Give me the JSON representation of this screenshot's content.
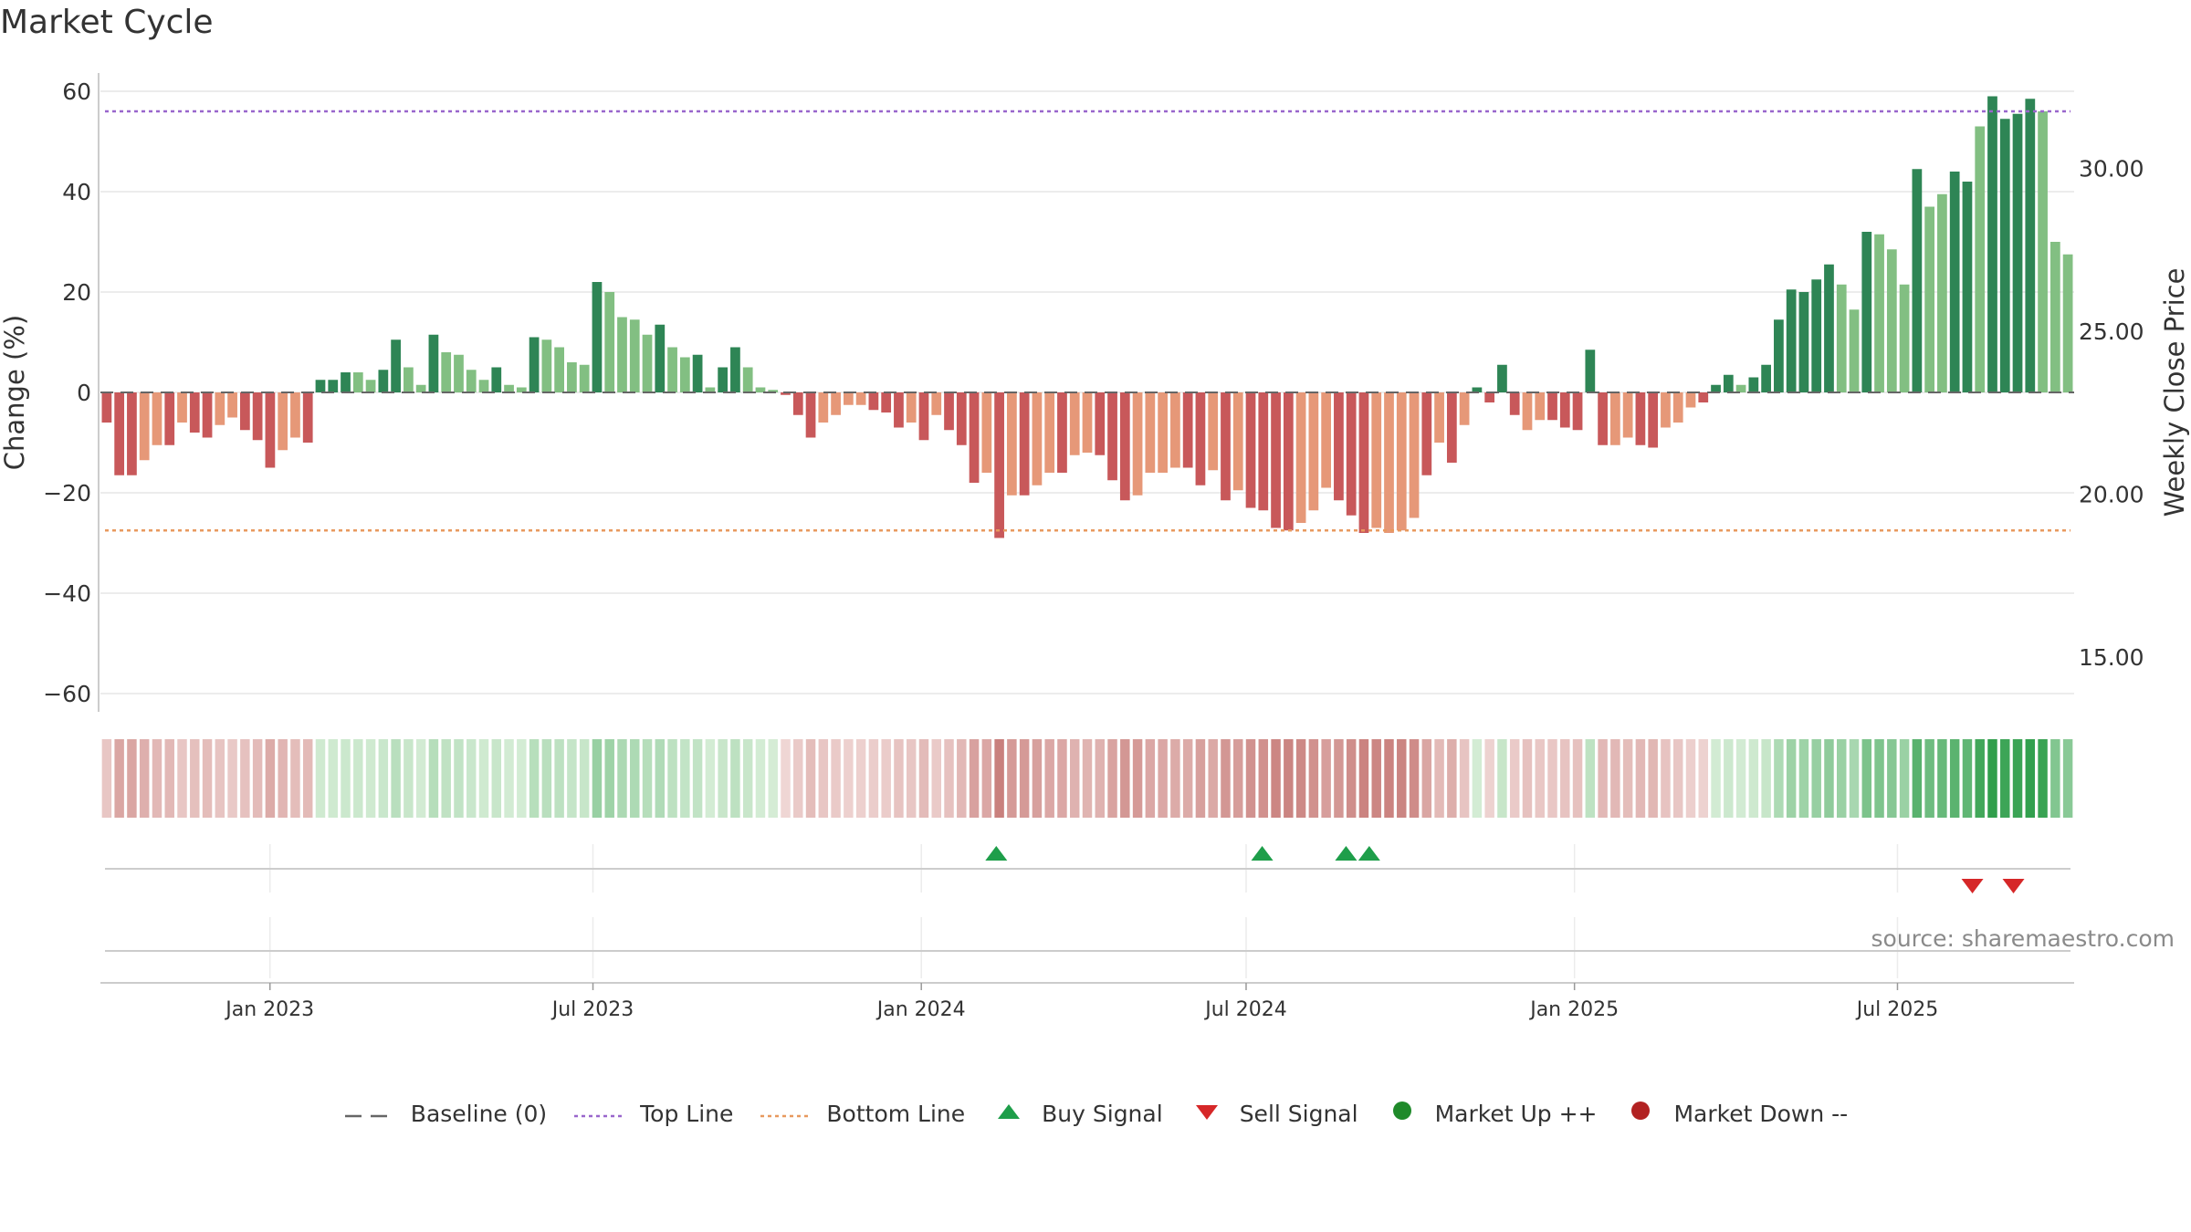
{
  "title": "Market Cycle",
  "source_text": "source: sharemaestro.com",
  "legend": [
    {
      "label": "Baseline (0)",
      "icon": "dash-line",
      "color": "#666666"
    },
    {
      "label": "Top Line",
      "icon": "dotted-line",
      "color": "#9966cc"
    },
    {
      "label": "Bottom Line",
      "icon": "dotted-line",
      "color": "#e8995e"
    },
    {
      "label": "Buy Signal",
      "icon": "triangle-up",
      "color": "#1e9e4a"
    },
    {
      "label": "Sell Signal",
      "icon": "triangle-down",
      "color": "#d62728"
    },
    {
      "label": "Market Up ++",
      "icon": "dot",
      "color": "#1f8a2a"
    },
    {
      "label": "Market Down --",
      "icon": "dot",
      "color": "#b22222"
    }
  ],
  "chart_data": {
    "type": "bar",
    "title": "Market Cycle",
    "ylabel": "Change (%)",
    "y2label": "Weekly Close Price",
    "ylim": [
      -60,
      60
    ],
    "y2lim": [
      13.92,
      32.58
    ],
    "y_ticks": [
      -60,
      -40,
      -20,
      0,
      20,
      40,
      60
    ],
    "y_tick_labels": [
      "−60",
      "−40",
      "−20",
      "0",
      "20",
      "40",
      "60"
    ],
    "y2_ticks": [
      "15.00",
      "20.00",
      "25.00",
      "30.00"
    ],
    "x_ticks": [
      {
        "date": "2023-01-01",
        "label": "Jan 2023"
      },
      {
        "date": "2023-07-01",
        "label": "Jul 2023"
      },
      {
        "date": "2024-01-01",
        "label": "Jan 2024"
      },
      {
        "date": "2024-07-01",
        "label": "Jul 2024"
      },
      {
        "date": "2025-01-01",
        "label": "Jan 2025"
      },
      {
        "date": "2025-07-01",
        "label": "Jul 2025"
      }
    ],
    "start_date": "2022-09-28",
    "end_date": "2025-10-08",
    "top_line": 56,
    "bottom_line": -27.5,
    "grid": true,
    "legend_position": "bottom",
    "colors": {
      "pos_dark": "#2e8555",
      "pos_light": "#82bf82",
      "neg_dark": "#c8585a",
      "neg_light": "#e69878",
      "top_line": "#9966cc",
      "bottom_line": "#e8995e",
      "baseline": "#666666",
      "buy": "#1e9e4a",
      "sell": "#d62728"
    },
    "values": [
      -6,
      -16.5,
      -16.5,
      -13.5,
      -10.5,
      -10.5,
      -6,
      -8,
      -9,
      -6.5,
      -5,
      -7.5,
      -9.5,
      -15,
      -11.5,
      -9,
      -10,
      2.5,
      2.5,
      4,
      4,
      2.5,
      4.5,
      10.5,
      5,
      1.5,
      11.5,
      8,
      7.5,
      4.5,
      2.5,
      5,
      1.5,
      1,
      11,
      10.5,
      9,
      6,
      5.5,
      22,
      20,
      15,
      14.5,
      11.5,
      13.5,
      9,
      7,
      7.5,
      1,
      5,
      9,
      5,
      1,
      0.5,
      -0.5,
      -4.5,
      -9,
      -6,
      -4.5,
      -2.5,
      -2.5,
      -3.5,
      -4,
      -7,
      -6,
      -9.5,
      -4.5,
      -7.5,
      -10.5,
      -18,
      -16,
      -29,
      -20.5,
      -20.5,
      -18.5,
      -16,
      -16,
      -12.5,
      -12,
      -12.5,
      -17.5,
      -21.5,
      -20.5,
      -16,
      -16,
      -15,
      -15,
      -18.5,
      -15.5,
      -21.5,
      -19.5,
      -23,
      -23.5,
      -27,
      -27.5,
      -26,
      -23.5,
      -19,
      -21.5,
      -24.5,
      -28,
      -27,
      -28,
      -27.5,
      -25,
      -16.5,
      -10,
      -14,
      -6.5,
      1,
      -2,
      5.5,
      -4.5,
      -7.5,
      -5.5,
      -5.5,
      -7,
      -7.5,
      8.5,
      -10.5,
      -10.5,
      -9,
      -10.5,
      -11,
      -7,
      -6,
      -3,
      -2,
      1.5,
      3.5,
      1.5,
      3,
      5.5,
      14.5,
      20.5,
      20,
      22.5,
      25.5,
      21.5,
      16.5,
      32,
      31.5,
      28.5,
      21.5,
      44.5,
      37,
      39.5,
      44,
      42,
      53,
      59,
      54.5,
      55.5,
      58.5,
      56,
      30,
      27.5
    ],
    "shades": [
      "d",
      "d",
      "d",
      "l",
      "l",
      "d",
      "l",
      "d",
      "d",
      "l",
      "l",
      "d",
      "d",
      "d",
      "l",
      "l",
      "d",
      "d",
      "d",
      "d",
      "l",
      "l",
      "d",
      "d",
      "l",
      "l",
      "d",
      "l",
      "l",
      "l",
      "l",
      "d",
      "l",
      "l",
      "d",
      "l",
      "l",
      "l",
      "l",
      "d",
      "l",
      "l",
      "l",
      "l",
      "d",
      "l",
      "l",
      "d",
      "l",
      "d",
      "d",
      "l",
      "l",
      "l",
      "d",
      "d",
      "d",
      "l",
      "l",
      "l",
      "l",
      "d",
      "d",
      "d",
      "l",
      "d",
      "l",
      "d",
      "d",
      "d",
      "l",
      "d",
      "l",
      "d",
      "l",
      "l",
      "d",
      "l",
      "l",
      "d",
      "d",
      "d",
      "l",
      "l",
      "l",
      "l",
      "d",
      "d",
      "l",
      "d",
      "l",
      "d",
      "d",
      "d",
      "d",
      "l",
      "l",
      "l",
      "d",
      "d",
      "d",
      "l",
      "l",
      "l",
      "l",
      "d",
      "l",
      "d",
      "l",
      "d",
      "d",
      "d",
      "d",
      "l",
      "l",
      "d",
      "d",
      "d",
      "d",
      "d",
      "l",
      "l",
      "d",
      "d",
      "l",
      "l",
      "l",
      "d",
      "d",
      "d",
      "l",
      "d",
      "d",
      "d",
      "d",
      "d",
      "d",
      "d",
      "l",
      "l",
      "d",
      "l",
      "l",
      "l",
      "d",
      "l",
      "l",
      "d",
      "d",
      "l",
      "d",
      "d",
      "d",
      "d",
      "l",
      "l",
      "l",
      "l"
    ],
    "buy_signals": [
      "2024-02-12",
      "2024-07-10",
      "2024-08-26",
      "2024-09-08"
    ],
    "sell_signals": [
      "2025-08-12",
      "2025-09-04"
    ]
  }
}
